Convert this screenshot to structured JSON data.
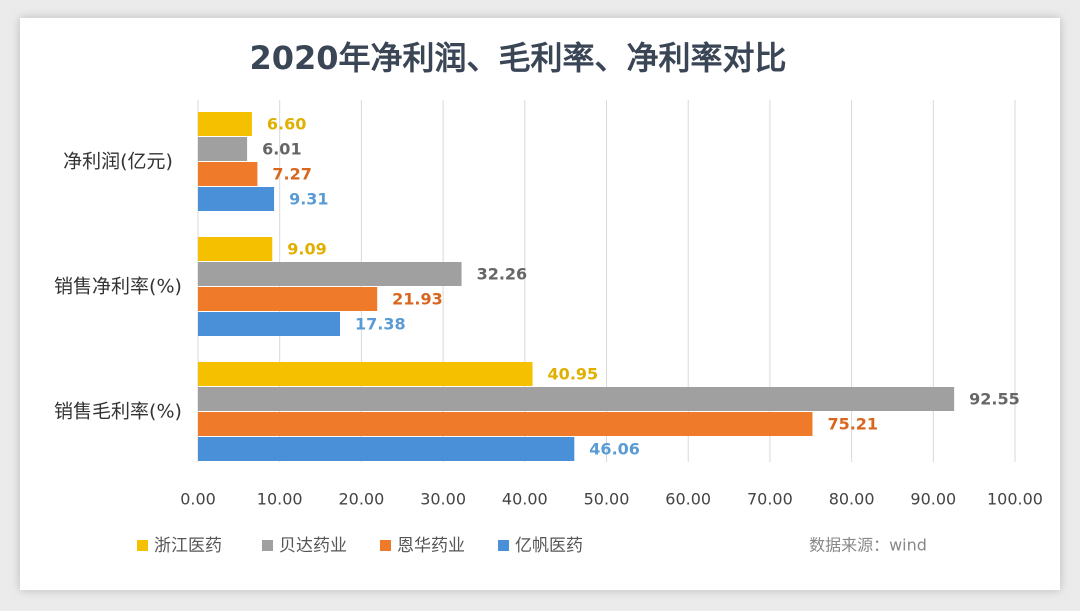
{
  "chart_data": {
    "type": "hbar",
    "title": "2020年净利润、毛利率、净利率对比",
    "categories": [
      "净利润(亿元)",
      "销售净利率(%)",
      "销售毛利率(%)"
    ],
    "series": [
      {
        "name": "浙江医药",
        "color": "#f5c000",
        "values": [
          6.6,
          9.09,
          40.95
        ],
        "value_labels": [
          "6.60",
          "9.09",
          "40.95"
        ]
      },
      {
        "name": "贝达药业",
        "color": "#a0a0a0",
        "values": [
          6.01,
          32.26,
          92.55
        ],
        "value_labels": [
          "6.01",
          "32.26",
          "92.55"
        ]
      },
      {
        "name": "恩华药业",
        "color": "#ee7a2a",
        "values": [
          7.27,
          21.93,
          75.21
        ],
        "value_labels": [
          "7.27",
          "21.93",
          "75.21"
        ]
      },
      {
        "name": "亿帆医药",
        "color": "#4a90d9",
        "values": [
          9.31,
          17.38,
          46.06
        ],
        "value_labels": [
          "9.31",
          "17.38",
          "46.06"
        ]
      }
    ],
    "label_colors": [
      "#e0b000",
      "#666666",
      "#d8661e",
      "#5b9bd5"
    ],
    "xlim": [
      0,
      100
    ],
    "xticks": [
      {
        "value": 0,
        "label": "0.00"
      },
      {
        "value": 10,
        "label": "10.00"
      },
      {
        "value": 20,
        "label": "20.00"
      },
      {
        "value": 30,
        "label": "30.00"
      },
      {
        "value": 40,
        "label": "40.00"
      },
      {
        "value": 50,
        "label": "50.00"
      },
      {
        "value": 60,
        "label": "60.00"
      },
      {
        "value": 70,
        "label": "70.00"
      },
      {
        "value": 80,
        "label": "80.00"
      },
      {
        "value": 90,
        "label": "90.00"
      },
      {
        "value": 100,
        "label": "100.00"
      }
    ],
    "grid": true,
    "source": "数据来源：wind"
  }
}
